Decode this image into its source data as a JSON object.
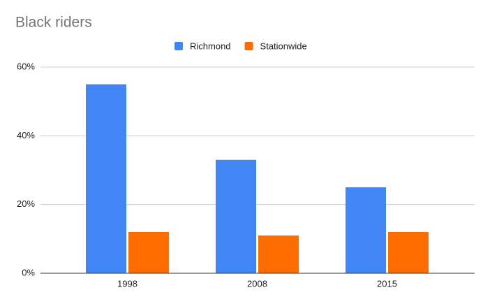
{
  "chart_data": {
    "type": "bar",
    "title": "Black riders",
    "categories": [
      "1998",
      "2008",
      "2015"
    ],
    "series": [
      {
        "name": "Richmond",
        "color": "#4285f4",
        "values": [
          55,
          33,
          25
        ]
      },
      {
        "name": "Stationwide",
        "color": "#ff6d01",
        "values": [
          12,
          11,
          12
        ]
      }
    ],
    "ylim": [
      0,
      60
    ],
    "yticks": [
      {
        "value": 0,
        "label": "0%"
      },
      {
        "value": 20,
        "label": "20%"
      },
      {
        "value": 40,
        "label": "40%"
      },
      {
        "value": 60,
        "label": "60%"
      }
    ],
    "grid": true,
    "legend": "top"
  }
}
